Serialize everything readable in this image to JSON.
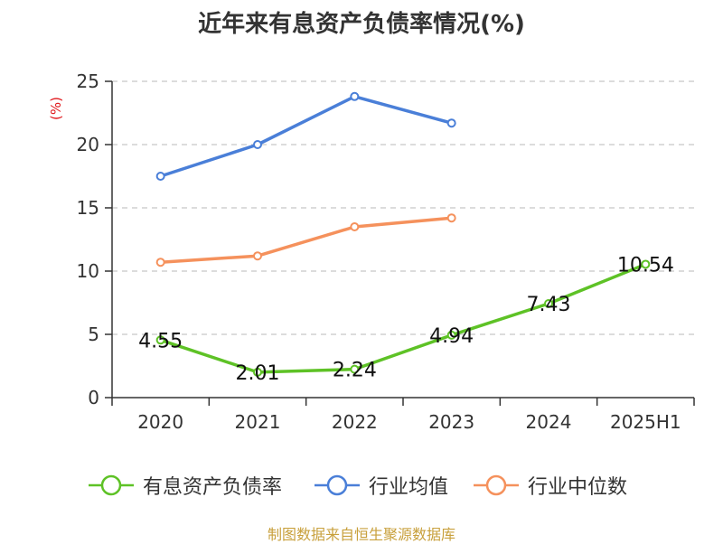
{
  "title": "近年来有息资产负债率情况(%)",
  "source": "制图数据来自恒生聚源数据库",
  "colors": {
    "series": [
      "#5ec226",
      "#4a7fd8",
      "#f5915c"
    ],
    "grid": "#c8c8c8",
    "axis": "#333333",
    "ylabel": "#e0161a",
    "source": "#c8a03c"
  },
  "chart_data": {
    "type": "line",
    "categories": [
      "2020",
      "2021",
      "2022",
      "2023",
      "2024",
      "2025H1"
    ],
    "ylabel": "(%)",
    "ylim": [
      0,
      25
    ],
    "yticks": [
      0,
      5,
      10,
      15,
      20,
      25
    ],
    "grid": true,
    "legend_position": "bottom",
    "series": [
      {
        "name": "有息资产负债率",
        "values": [
          4.55,
          2.01,
          2.24,
          4.94,
          7.43,
          10.54
        ],
        "labels": [
          "4.55",
          "2.01",
          "2.24",
          "4.94",
          "7.43",
          "10.54"
        ]
      },
      {
        "name": "行业均值",
        "values": [
          17.5,
          20.0,
          23.8,
          21.7,
          null,
          null
        ]
      },
      {
        "name": "行业中位数",
        "values": [
          10.7,
          11.2,
          13.5,
          14.2,
          null,
          null
        ]
      }
    ]
  }
}
